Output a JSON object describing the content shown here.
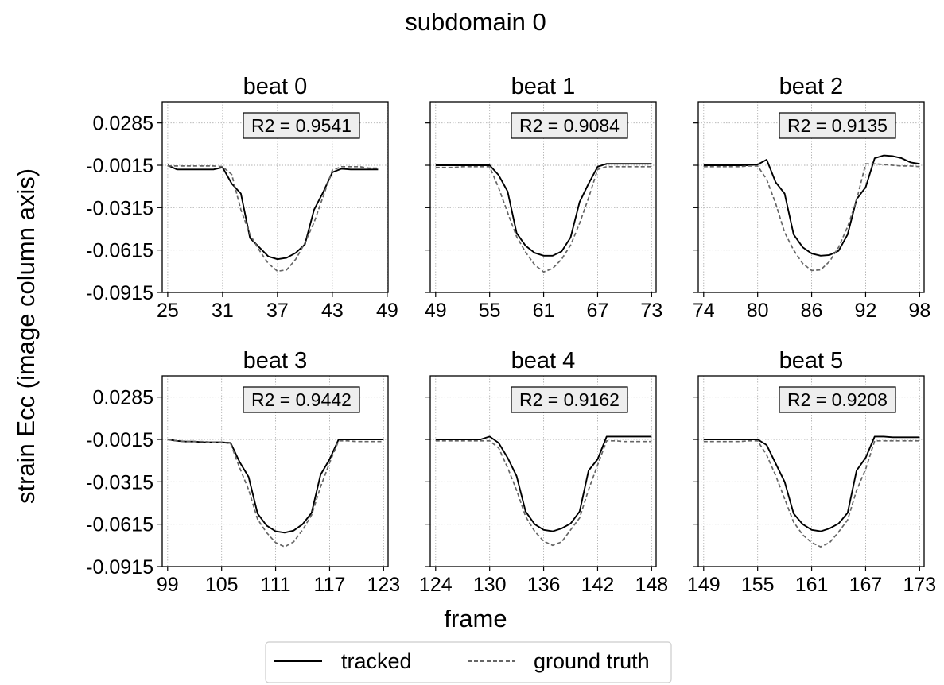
{
  "figure": {
    "title": "subdomain 0",
    "xlabel": "frame",
    "ylabel": "strain Ecc (image column axis)"
  },
  "legend": {
    "placement": "bottom-center",
    "items": [
      {
        "label": "tracked",
        "color": "#000000",
        "dash": "solid"
      },
      {
        "label": "ground truth",
        "color": "#666666",
        "dash": "dashed"
      }
    ]
  },
  "colors": {
    "tracked": "#000000",
    "ground_truth": "#666666",
    "grid": "#b0b0b0",
    "annotation_bg": "#eeeeee"
  },
  "chart_data": [
    {
      "type": "line",
      "title": "beat 0",
      "annotation": "R2 = 0.9541",
      "xticks": [
        25,
        31,
        37,
        43,
        49
      ],
      "yticks": [
        0.0285,
        -0.0015,
        -0.0315,
        -0.0615,
        -0.0915
      ],
      "xlim": [
        24.4,
        49.1
      ],
      "ylim": [
        -0.0915,
        0.0435
      ],
      "grid": true,
      "x": [
        25,
        26,
        27,
        28,
        29,
        30,
        31,
        32,
        33,
        34,
        35,
        36,
        37,
        38,
        39,
        40,
        41,
        42,
        43,
        44,
        45,
        46,
        47,
        48
      ],
      "series": [
        {
          "name": "tracked",
          "values": [
            -0.0015,
            -0.0045,
            -0.0045,
            -0.0045,
            -0.0045,
            -0.0045,
            -0.003,
            -0.0145,
            -0.0215,
            -0.053,
            -0.0595,
            -0.066,
            -0.068,
            -0.067,
            -0.0635,
            -0.0575,
            -0.033,
            -0.0205,
            -0.0065,
            -0.004,
            -0.0045,
            -0.0045,
            -0.0045,
            -0.0045
          ]
        },
        {
          "name": "ground truth",
          "values": [
            -0.002,
            -0.002,
            -0.002,
            -0.002,
            -0.002,
            -0.002,
            -0.0025,
            -0.008,
            -0.033,
            -0.0505,
            -0.0615,
            -0.071,
            -0.0765,
            -0.0755,
            -0.068,
            -0.0565,
            -0.042,
            -0.0235,
            -0.005,
            -0.0025,
            -0.0025,
            -0.0025,
            -0.0035,
            -0.0035
          ]
        }
      ]
    },
    {
      "type": "line",
      "title": "beat 1",
      "annotation": "R2 = 0.9084",
      "xticks": [
        49,
        55,
        61,
        67,
        73
      ],
      "yticks": [
        0.0285,
        -0.0015,
        -0.0315,
        -0.0615,
        -0.0915
      ],
      "xlim": [
        48.4,
        73.5
      ],
      "ylim": [
        -0.0915,
        0.0435
      ],
      "grid": true,
      "x": [
        49,
        50,
        51,
        52,
        53,
        54,
        55,
        56,
        57,
        58,
        59,
        60,
        61,
        62,
        63,
        64,
        65,
        66,
        67,
        68,
        69,
        70,
        71,
        72,
        73
      ],
      "series": [
        {
          "name": "tracked",
          "values": [
            -0.0015,
            -0.0015,
            -0.0015,
            -0.0015,
            -0.0015,
            -0.0015,
            -0.0015,
            -0.0085,
            -0.02,
            -0.0495,
            -0.0585,
            -0.0635,
            -0.0655,
            -0.0655,
            -0.0625,
            -0.0525,
            -0.0275,
            -0.0145,
            -0.0025,
            -0.0005,
            -0.0005,
            -0.0005,
            -0.0005,
            -0.0005,
            -0.0005
          ]
        },
        {
          "name": "ground truth",
          "values": [
            -0.003,
            -0.003,
            -0.003,
            -0.0025,
            -0.0025,
            -0.0025,
            -0.0025,
            -0.0175,
            -0.035,
            -0.052,
            -0.063,
            -0.072,
            -0.077,
            -0.0745,
            -0.068,
            -0.058,
            -0.0425,
            -0.0245,
            -0.0045,
            -0.0025,
            -0.0025,
            -0.0025,
            -0.0025,
            -0.0025,
            -0.0025
          ]
        }
      ]
    },
    {
      "type": "line",
      "title": "beat 2",
      "annotation": "R2 = 0.9135",
      "xticks": [
        74,
        80,
        86,
        92,
        98
      ],
      "yticks": [
        0.0285,
        -0.0015,
        -0.0315,
        -0.0615,
        -0.0915
      ],
      "xlim": [
        73.4,
        98.5
      ],
      "ylim": [
        -0.0915,
        0.0435
      ],
      "grid": true,
      "x": [
        74,
        75,
        76,
        77,
        78,
        79,
        80,
        81,
        82,
        83,
        84,
        85,
        86,
        87,
        88,
        89,
        90,
        91,
        92,
        93,
        94,
        95,
        96,
        97,
        98
      ],
      "series": [
        {
          "name": "tracked",
          "values": [
            -0.0015,
            -0.0015,
            -0.0015,
            -0.0015,
            -0.0015,
            -0.0015,
            -0.001,
            0.0025,
            -0.0135,
            -0.0215,
            -0.0505,
            -0.0595,
            -0.064,
            -0.0655,
            -0.065,
            -0.062,
            -0.0505,
            -0.0255,
            -0.017,
            0.0035,
            0.0055,
            0.005,
            0.0035,
            0.0005,
            -0.0005
          ]
        },
        {
          "name": "ground truth",
          "values": [
            -0.0025,
            -0.0025,
            -0.0025,
            -0.0025,
            -0.0025,
            -0.002,
            -0.002,
            -0.0115,
            -0.0285,
            -0.049,
            -0.0615,
            -0.071,
            -0.076,
            -0.0755,
            -0.0695,
            -0.0595,
            -0.045,
            -0.026,
            -0.0005,
            -0.0005,
            -0.001,
            -0.0015,
            -0.002,
            -0.002,
            -0.0025
          ]
        }
      ]
    },
    {
      "type": "line",
      "title": "beat 3",
      "annotation": "R2 = 0.9442",
      "xticks": [
        99,
        105,
        111,
        117,
        123
      ],
      "yticks": [
        0.0285,
        -0.0015,
        -0.0315,
        -0.0615,
        -0.0915
      ],
      "xlim": [
        98.4,
        123.5
      ],
      "ylim": [
        -0.0915,
        0.0435
      ],
      "grid": true,
      "x": [
        99,
        100,
        101,
        102,
        103,
        104,
        105,
        106,
        107,
        108,
        109,
        110,
        111,
        112,
        113,
        114,
        115,
        116,
        117,
        118,
        119,
        120,
        121,
        122,
        123
      ],
      "series": [
        {
          "name": "tracked",
          "values": [
            -0.0015,
            -0.0025,
            -0.003,
            -0.003,
            -0.0035,
            -0.0035,
            -0.0035,
            -0.004,
            -0.0175,
            -0.028,
            -0.054,
            -0.0625,
            -0.0665,
            -0.0675,
            -0.066,
            -0.0615,
            -0.0535,
            -0.0265,
            -0.0155,
            -0.0015,
            -0.0015,
            -0.0015,
            -0.0015,
            -0.0015,
            -0.0015
          ]
        },
        {
          "name": "ground truth",
          "values": [
            -0.0015,
            -0.0025,
            -0.003,
            -0.003,
            -0.003,
            -0.0035,
            -0.0035,
            -0.0045,
            -0.0215,
            -0.037,
            -0.058,
            -0.0675,
            -0.0745,
            -0.0775,
            -0.074,
            -0.0655,
            -0.055,
            -0.035,
            -0.018,
            -0.0025,
            -0.0025,
            -0.003,
            -0.003,
            -0.003,
            -0.003
          ]
        }
      ]
    },
    {
      "type": "line",
      "title": "beat 4",
      "annotation": "R2 = 0.9162",
      "xticks": [
        124,
        130,
        136,
        142,
        148
      ],
      "yticks": [
        0.0285,
        -0.0015,
        -0.0315,
        -0.0615,
        -0.0915
      ],
      "xlim": [
        123.4,
        148.5
      ],
      "ylim": [
        -0.0915,
        0.0435
      ],
      "grid": true,
      "x": [
        124,
        125,
        126,
        127,
        128,
        129,
        130,
        131,
        132,
        133,
        134,
        135,
        136,
        137,
        138,
        139,
        140,
        141,
        142,
        143,
        144,
        145,
        146,
        147,
        148
      ],
      "series": [
        {
          "name": "tracked",
          "values": [
            -0.0015,
            -0.0015,
            -0.0015,
            -0.0015,
            -0.0015,
            -0.0015,
            0.0005,
            -0.004,
            -0.0145,
            -0.0275,
            -0.0525,
            -0.0615,
            -0.0655,
            -0.0665,
            -0.0645,
            -0.061,
            -0.0525,
            -0.0235,
            -0.0155,
            0.0005,
            0.0005,
            0.0005,
            0.0005,
            0.0005,
            0.0005
          ]
        },
        {
          "name": "ground truth",
          "values": [
            -0.0025,
            -0.0025,
            -0.0025,
            -0.0025,
            -0.0025,
            -0.0025,
            -0.0025,
            -0.0075,
            -0.0215,
            -0.0375,
            -0.056,
            -0.0665,
            -0.0735,
            -0.0765,
            -0.074,
            -0.0655,
            -0.057,
            -0.037,
            -0.0195,
            -0.0025,
            -0.0025,
            -0.003,
            -0.003,
            -0.003,
            -0.003
          ]
        }
      ]
    },
    {
      "type": "line",
      "title": "beat 5",
      "annotation": "R2 = 0.9208",
      "xticks": [
        149,
        155,
        161,
        167,
        173
      ],
      "yticks": [
        0.0285,
        -0.0015,
        -0.0315,
        -0.0615,
        -0.0915
      ],
      "xlim": [
        148.4,
        173.5
      ],
      "ylim": [
        -0.0915,
        0.0435
      ],
      "grid": true,
      "x": [
        149,
        150,
        151,
        152,
        153,
        154,
        155,
        156,
        157,
        158,
        159,
        160,
        161,
        162,
        163,
        164,
        165,
        166,
        167,
        168,
        169,
        170,
        171,
        172,
        173
      ],
      "series": [
        {
          "name": "tracked",
          "values": [
            -0.0015,
            -0.0015,
            -0.0015,
            -0.0015,
            -0.0015,
            -0.0015,
            -0.0015,
            -0.0055,
            -0.0185,
            -0.0315,
            -0.054,
            -0.0615,
            -0.0655,
            -0.0665,
            -0.0645,
            -0.061,
            -0.0535,
            -0.0235,
            -0.0145,
            0.0005,
            0.0005,
            0.0,
            0.0,
            0.0,
            0.0
          ]
        },
        {
          "name": "ground truth",
          "values": [
            -0.003,
            -0.003,
            -0.003,
            -0.003,
            -0.003,
            -0.0025,
            -0.0025,
            -0.0125,
            -0.027,
            -0.0435,
            -0.06,
            -0.069,
            -0.0745,
            -0.0775,
            -0.0745,
            -0.067,
            -0.0585,
            -0.0375,
            -0.0225,
            -0.0025,
            -0.0025,
            -0.0025,
            -0.0025,
            -0.0025,
            -0.0025
          ]
        }
      ]
    }
  ]
}
